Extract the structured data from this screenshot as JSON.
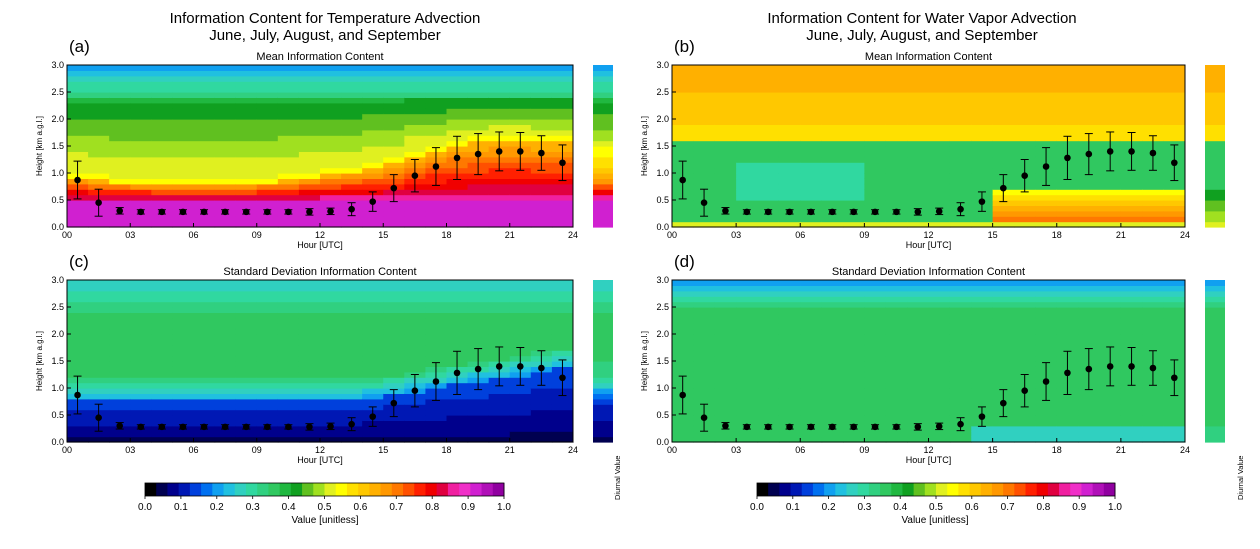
{
  "figure": {
    "titles": [
      {
        "line1": "Information Content for Temperature Advection",
        "line2": "June, July, August, and September"
      },
      {
        "line1": "Information Content for Water Vapor Advection",
        "line2": "June, July, August, and September"
      }
    ],
    "side_label": "Diurnal Value",
    "colorbar": {
      "label": "Value [unitless]",
      "ticks": [
        "0.0",
        "0.1",
        "0.2",
        "0.3",
        "0.4",
        "0.5",
        "0.6",
        "0.7",
        "0.8",
        "0.9",
        "1.0"
      ],
      "colors": [
        "#000000",
        "#000050",
        "#00008c",
        "#0018b4",
        "#0040dc",
        "#0070f0",
        "#10a0f0",
        "#20c0e0",
        "#30d0c0",
        "#30d8a0",
        "#30d080",
        "#30c860",
        "#20b840",
        "#10a020",
        "#60c020",
        "#a0e020",
        "#e0f020",
        "#ffff00",
        "#ffe000",
        "#ffc800",
        "#ffb000",
        "#ff9800",
        "#ff7800",
        "#ff5000",
        "#ff2000",
        "#f00000",
        "#e00040",
        "#f020a0",
        "#f030c8",
        "#d020d0",
        "#b010b8",
        "#9000a0"
      ]
    }
  },
  "chart_data": [
    {
      "type": "heatmap",
      "panel_label": "(a)",
      "title": "Mean Information Content",
      "xlabel": "Hour [UTC]",
      "ylabel": "Height [km a.g.l.]",
      "x_ticks": [
        "00",
        "03",
        "06",
        "09",
        "12",
        "15",
        "18",
        "21",
        "24"
      ],
      "y_ticks": [
        "0.0",
        "0.5",
        "1.0",
        "1.5",
        "2.0",
        "2.5",
        "3.0"
      ],
      "xlim": [
        0,
        24
      ],
      "ylim": [
        0,
        3
      ],
      "value_range": [
        0,
        1
      ],
      "field_model": "layered",
      "field": {
        "top": 0.2,
        "mid": 0.4,
        "low": 0.62,
        "bottom": 0.92,
        "bottom_height": 0.5,
        "transition_height_by_hour": [
          0.95,
          0.9,
          0.85,
          0.82,
          0.8,
          0.8,
          0.8,
          0.8,
          0.8,
          0.85,
          0.9,
          0.95,
          1.0,
          1.05,
          1.1,
          1.2,
          1.35,
          1.45,
          1.55,
          1.6,
          1.65,
          1.65,
          1.6,
          1.6
        ]
      },
      "points": {
        "hours": [
          0.5,
          1.5,
          2.5,
          3.5,
          4.5,
          5.5,
          6.5,
          7.5,
          8.5,
          9.5,
          10.5,
          11.5,
          12.5,
          13.5,
          14.5,
          15.5,
          16.5,
          17.5,
          18.5,
          19.5,
          20.5,
          21.5,
          22.5,
          23.5
        ],
        "height": [
          0.87,
          0.45,
          0.3,
          0.28,
          0.28,
          0.28,
          0.28,
          0.28,
          0.28,
          0.28,
          0.28,
          0.28,
          0.29,
          0.33,
          0.47,
          0.72,
          0.95,
          1.12,
          1.28,
          1.35,
          1.4,
          1.4,
          1.37,
          1.19
        ],
        "err": [
          0.35,
          0.25,
          0.06,
          0.04,
          0.04,
          0.04,
          0.04,
          0.04,
          0.04,
          0.04,
          0.04,
          0.06,
          0.06,
          0.12,
          0.18,
          0.25,
          0.3,
          0.35,
          0.4,
          0.38,
          0.36,
          0.35,
          0.32,
          0.33
        ]
      }
    },
    {
      "type": "heatmap",
      "panel_label": "(b)",
      "title": "Mean Information Content",
      "xlabel": "Hour [UTC]",
      "ylabel": "Height [km a.g.l.]",
      "x_ticks": [
        "00",
        "03",
        "06",
        "09",
        "12",
        "15",
        "18",
        "21",
        "24"
      ],
      "y_ticks": [
        "0.0",
        "0.5",
        "1.0",
        "1.5",
        "2.0",
        "2.5",
        "3.0"
      ],
      "xlim": [
        0,
        24
      ],
      "ylim": [
        0,
        3
      ],
      "value_range": [
        0,
        1
      ],
      "field_model": "water",
      "field": {
        "upper": 0.6,
        "band": 0.36,
        "band_height": 1.65,
        "surface": 0.75
      },
      "points": {
        "hours": [
          0.5,
          1.5,
          2.5,
          3.5,
          4.5,
          5.5,
          6.5,
          7.5,
          8.5,
          9.5,
          10.5,
          11.5,
          12.5,
          13.5,
          14.5,
          15.5,
          16.5,
          17.5,
          18.5,
          19.5,
          20.5,
          21.5,
          22.5,
          23.5
        ],
        "height": [
          0.87,
          0.45,
          0.3,
          0.28,
          0.28,
          0.28,
          0.28,
          0.28,
          0.28,
          0.28,
          0.28,
          0.28,
          0.29,
          0.33,
          0.47,
          0.72,
          0.95,
          1.12,
          1.28,
          1.35,
          1.4,
          1.4,
          1.37,
          1.19
        ],
        "err": [
          0.35,
          0.25,
          0.06,
          0.04,
          0.04,
          0.04,
          0.04,
          0.04,
          0.04,
          0.04,
          0.04,
          0.06,
          0.06,
          0.12,
          0.18,
          0.25,
          0.3,
          0.35,
          0.4,
          0.38,
          0.36,
          0.35,
          0.32,
          0.33
        ]
      }
    },
    {
      "type": "heatmap",
      "panel_label": "(c)",
      "title": "Standard Deviation Information Content",
      "xlabel": "Hour [UTC]",
      "ylabel": "Height [km a.g.l.]",
      "x_ticks": [
        "00",
        "03",
        "06",
        "09",
        "12",
        "15",
        "18",
        "21",
        "24"
      ],
      "y_ticks": [
        "0.0",
        "0.5",
        "1.0",
        "1.5",
        "2.0",
        "2.5",
        "3.0"
      ],
      "xlim": [
        0,
        24
      ],
      "ylim": [
        0,
        3
      ],
      "value_range": [
        0,
        1
      ],
      "field_model": "std",
      "field": {
        "top": 0.25,
        "mid": 0.36,
        "low": 0.1
      },
      "points": {
        "hours": [
          0.5,
          1.5,
          2.5,
          3.5,
          4.5,
          5.5,
          6.5,
          7.5,
          8.5,
          9.5,
          10.5,
          11.5,
          12.5,
          13.5,
          14.5,
          15.5,
          16.5,
          17.5,
          18.5,
          19.5,
          20.5,
          21.5,
          22.5,
          23.5
        ],
        "height": [
          0.87,
          0.45,
          0.3,
          0.28,
          0.28,
          0.28,
          0.28,
          0.28,
          0.28,
          0.28,
          0.28,
          0.28,
          0.29,
          0.33,
          0.47,
          0.72,
          0.95,
          1.12,
          1.28,
          1.35,
          1.4,
          1.4,
          1.37,
          1.19
        ],
        "err": [
          0.35,
          0.25,
          0.06,
          0.04,
          0.04,
          0.04,
          0.04,
          0.04,
          0.04,
          0.04,
          0.04,
          0.06,
          0.06,
          0.12,
          0.18,
          0.25,
          0.3,
          0.35,
          0.4,
          0.38,
          0.36,
          0.35,
          0.32,
          0.33
        ]
      }
    },
    {
      "type": "heatmap",
      "panel_label": "(d)",
      "title": "Standard Deviation Information Content",
      "xlabel": "Hour [UTC]",
      "ylabel": "Height [km a.g.l.]",
      "x_ticks": [
        "00",
        "03",
        "06",
        "09",
        "12",
        "15",
        "18",
        "21",
        "24"
      ],
      "y_ticks": [
        "0.0",
        "0.5",
        "1.0",
        "1.5",
        "2.0",
        "2.5",
        "3.0"
      ],
      "xlim": [
        0,
        24
      ],
      "ylim": [
        0,
        3
      ],
      "value_range": [
        0,
        1
      ],
      "field_model": "std_water",
      "field": {
        "top": 0.28,
        "mid": 0.36,
        "low": 0.32
      },
      "points": {
        "hours": [
          0.5,
          1.5,
          2.5,
          3.5,
          4.5,
          5.5,
          6.5,
          7.5,
          8.5,
          9.5,
          10.5,
          11.5,
          12.5,
          13.5,
          14.5,
          15.5,
          16.5,
          17.5,
          18.5,
          19.5,
          20.5,
          21.5,
          22.5,
          23.5
        ],
        "height": [
          0.87,
          0.45,
          0.3,
          0.28,
          0.28,
          0.28,
          0.28,
          0.28,
          0.28,
          0.28,
          0.28,
          0.28,
          0.29,
          0.33,
          0.47,
          0.72,
          0.95,
          1.12,
          1.28,
          1.35,
          1.4,
          1.4,
          1.37,
          1.19
        ],
        "err": [
          0.35,
          0.25,
          0.06,
          0.04,
          0.04,
          0.04,
          0.04,
          0.04,
          0.04,
          0.04,
          0.04,
          0.06,
          0.06,
          0.12,
          0.18,
          0.25,
          0.3,
          0.35,
          0.4,
          0.38,
          0.36,
          0.35,
          0.32,
          0.33
        ]
      }
    }
  ]
}
